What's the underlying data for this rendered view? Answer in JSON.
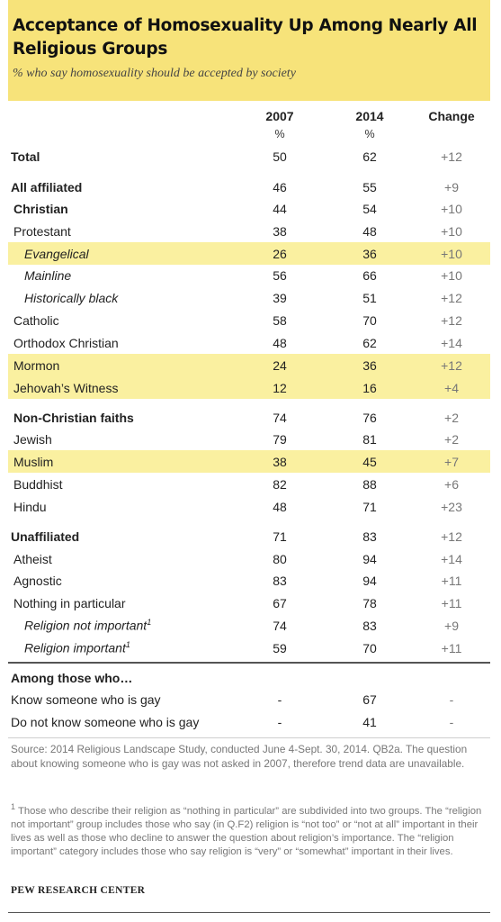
{
  "header": {
    "title": "Acceptance of Homosexuality Up Among Nearly All Religious Groups",
    "subtitle": "% who say homosexuality should be accepted by society"
  },
  "columns": {
    "y2007": "2007",
    "y2014": "2014",
    "change": "Change",
    "unit": "%"
  },
  "rows": [
    {
      "label": "Total",
      "v2007": "50",
      "v2014": "62",
      "change": "+12"
    },
    {
      "label": "All affiliated",
      "v2007": "46",
      "v2014": "55",
      "change": "+9"
    },
    {
      "label": "Christian",
      "v2007": "44",
      "v2014": "54",
      "change": "+10"
    },
    {
      "label": "Protestant",
      "v2007": "38",
      "v2014": "48",
      "change": "+10"
    },
    {
      "label": "Evangelical",
      "v2007": "26",
      "v2014": "36",
      "change": "+10"
    },
    {
      "label": "Mainline",
      "v2007": "56",
      "v2014": "66",
      "change": "+10"
    },
    {
      "label": "Historically black",
      "v2007": "39",
      "v2014": "51",
      "change": "+12"
    },
    {
      "label": "Catholic",
      "v2007": "58",
      "v2014": "70",
      "change": "+12"
    },
    {
      "label": "Orthodox Christian",
      "v2007": "48",
      "v2014": "62",
      "change": "+14"
    },
    {
      "label": "Mormon",
      "v2007": "24",
      "v2014": "36",
      "change": "+12"
    },
    {
      "label": "Jehovah’s Witness",
      "v2007": "12",
      "v2014": "16",
      "change": "+4"
    },
    {
      "label": "Non-Christian faiths",
      "v2007": "74",
      "v2014": "76",
      "change": "+2"
    },
    {
      "label": "Jewish",
      "v2007": "79",
      "v2014": "81",
      "change": "+2"
    },
    {
      "label": "Muslim",
      "v2007": "38",
      "v2014": "45",
      "change": "+7"
    },
    {
      "label": "Buddhist",
      "v2007": "82",
      "v2014": "88",
      "change": "+6"
    },
    {
      "label": "Hindu",
      "v2007": "48",
      "v2014": "71",
      "change": "+23"
    },
    {
      "label": "Unaffiliated",
      "v2007": "71",
      "v2014": "83",
      "change": "+12"
    },
    {
      "label": "Atheist",
      "v2007": "80",
      "v2014": "94",
      "change": "+14"
    },
    {
      "label": "Agnostic",
      "v2007": "83",
      "v2014": "94",
      "change": "+11"
    },
    {
      "label": "Nothing in particular",
      "v2007": "67",
      "v2014": "78",
      "change": "+11"
    },
    {
      "label": "Religion not important",
      "v2007": "74",
      "v2014": "83",
      "change": "+9"
    },
    {
      "label": "Religion important",
      "v2007": "59",
      "v2014": "70",
      "change": "+11"
    }
  ],
  "footnote_marker": "1",
  "among": {
    "heading": "Among those who…",
    "rows": [
      {
        "label": "Know someone who is gay",
        "v2007": "-",
        "v2014": "67",
        "change": "-"
      },
      {
        "label": "Do not know someone who is gay",
        "v2007": "-",
        "v2014": "41",
        "change": "-"
      }
    ]
  },
  "source": "Source: 2014 Religious Landscape Study, conducted June 4-Sept. 30, 2014. QB2a. The question about knowing someone who is gay was not asked in 2007, therefore trend data are unavailable.",
  "footnote": "Those who describe their religion as “nothing in particular” are subdivided into two groups. The “religion not important” group includes those who say (in Q.F2) religion is “not too” or “not at all” important in their lives as well as those who decline to answer the question about religion’s importance. The “religion important” category includes those who say religion is “very” or “somewhat” important in their lives.",
  "brand": "PEW RESEARCH CENTER",
  "colors": {
    "header_bg": "#f7e37a",
    "highlight_bg": "#faf0a0"
  }
}
